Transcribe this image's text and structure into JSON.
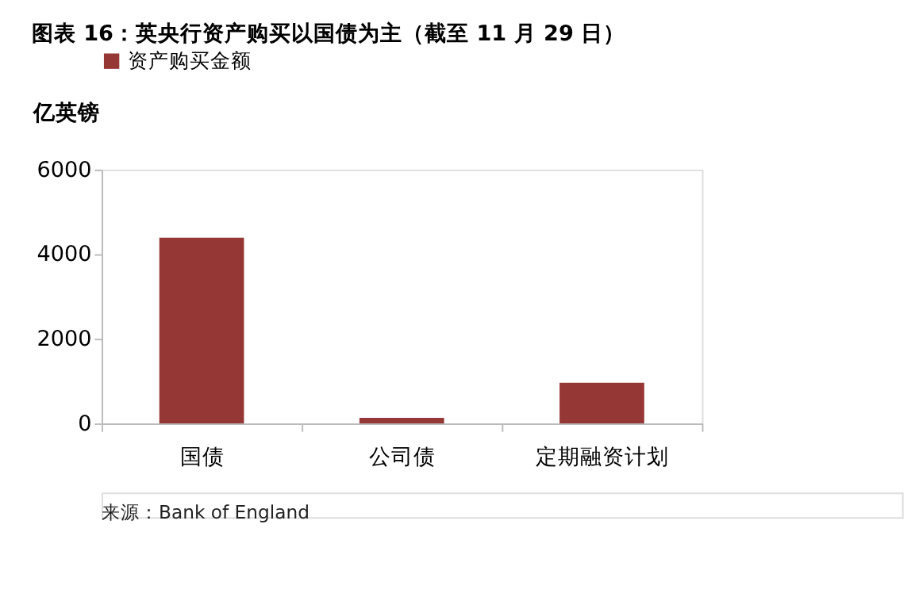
{
  "chart_data": {
    "type": "bar",
    "title": "图表 16：英央行资产购买以国债为主（截至 11 月 29 日）",
    "ylabel": "亿英镑",
    "categories": [
      "国债",
      "公司债",
      "定期融资计划"
    ],
    "series": [
      {
        "name": "资产购买金额",
        "color": "#953735",
        "values": [
          4390,
          130,
          960
        ]
      }
    ],
    "ylim": [
      0,
      6000
    ],
    "yticks": [
      0,
      2000,
      4000,
      6000
    ],
    "grid": false,
    "legend": "top",
    "annotations": [
      "来源：Bank of England"
    ]
  }
}
